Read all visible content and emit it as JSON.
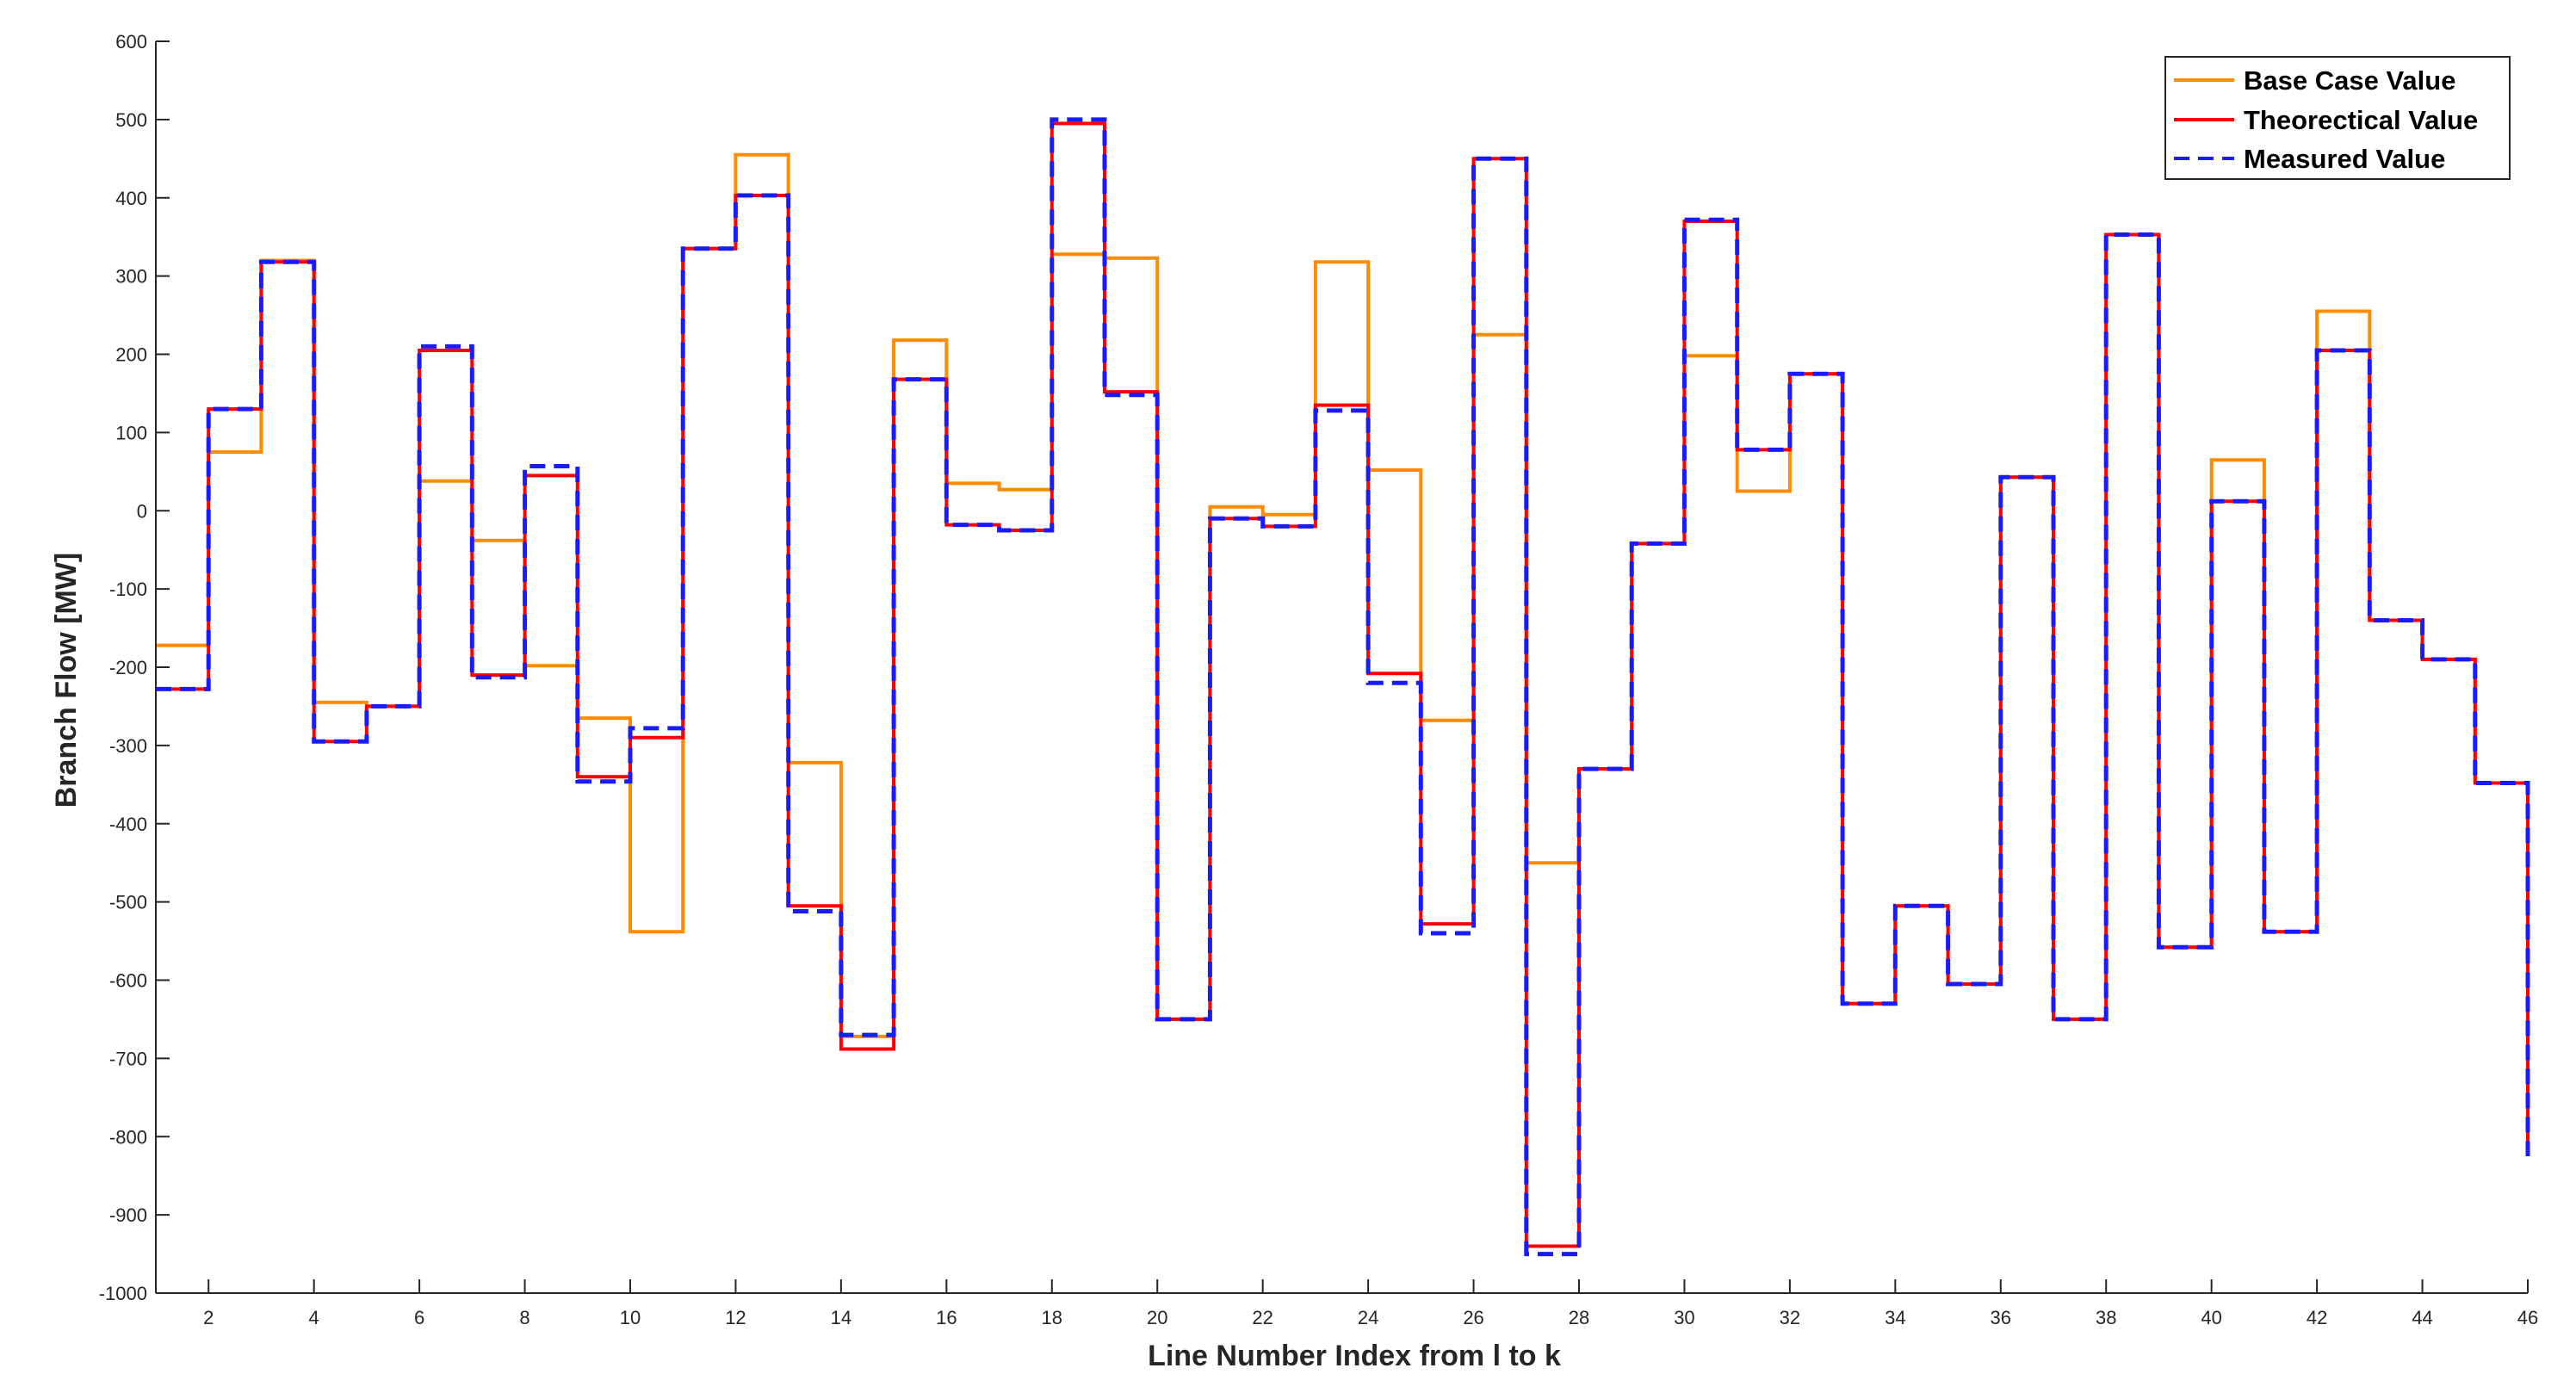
{
  "chart_data": {
    "type": "line",
    "style": "stairs",
    "title": "",
    "xlabel": "Line Number Index from l to k",
    "ylabel": "Branch Flow [MW]",
    "xlim": [
      1,
      46
    ],
    "ylim": [
      -1000,
      600
    ],
    "grid": false,
    "legend_position": "top-right",
    "x": [
      1,
      2,
      3,
      4,
      5,
      6,
      7,
      8,
      9,
      10,
      11,
      12,
      13,
      14,
      15,
      16,
      17,
      18,
      19,
      20,
      21,
      22,
      23,
      24,
      25,
      26,
      27,
      28,
      29,
      30,
      31,
      32,
      33,
      34,
      35,
      36,
      37,
      38,
      39,
      40,
      41,
      42,
      43,
      44,
      45,
      46
    ],
    "x_ticks": [
      2,
      4,
      6,
      8,
      10,
      12,
      14,
      16,
      18,
      20,
      22,
      24,
      26,
      28,
      30,
      32,
      34,
      36,
      38,
      40,
      42,
      44,
      46
    ],
    "y_ticks": [
      600,
      500,
      400,
      300,
      200,
      100,
      0,
      -100,
      -200,
      -300,
      -400,
      -500,
      -600,
      -700,
      -800,
      -900,
      -1000
    ],
    "series": [
      {
        "name": "Base Case Value",
        "color": "#ff8c00",
        "dash": "solid",
        "values": [
          -172,
          75,
          320,
          -245,
          -250,
          38,
          -38,
          -198,
          -265,
          -538,
          335,
          455,
          -322,
          -672,
          218,
          35,
          27,
          328,
          323,
          -650,
          5,
          -5,
          318,
          52,
          -268,
          225,
          -450,
          -330,
          -42,
          198,
          25,
          175,
          -630,
          -505,
          -605,
          43,
          -650,
          353,
          -558,
          65,
          -538,
          255,
          -140,
          -190,
          -348,
          -825
        ]
      },
      {
        "name": "Theorectical Value",
        "color": "#ff0000",
        "dash": "solid",
        "values": [
          -228,
          130,
          318,
          -295,
          -250,
          205,
          -210,
          45,
          -340,
          -290,
          335,
          403,
          -505,
          -688,
          168,
          -18,
          -25,
          495,
          152,
          -650,
          -10,
          -20,
          135,
          -208,
          -528,
          450,
          -940,
          -330,
          -42,
          370,
          78,
          175,
          -630,
          -505,
          -605,
          43,
          -650,
          353,
          -558,
          12,
          -538,
          205,
          -140,
          -190,
          -348,
          -825
        ]
      },
      {
        "name": "Measured Value",
        "color": "#1a1aff",
        "dash": "dashed",
        "values": [
          -228,
          130,
          318,
          -295,
          -250,
          210,
          -213,
          57,
          -346,
          -278,
          335,
          403,
          -512,
          -670,
          168,
          -18,
          -25,
          500,
          148,
          -650,
          -10,
          -20,
          128,
          -220,
          -540,
          450,
          -950,
          -330,
          -42,
          372,
          78,
          175,
          -630,
          -505,
          -605,
          43,
          -650,
          353,
          -558,
          12,
          -538,
          205,
          -140,
          -190,
          -348,
          -825
        ]
      }
    ]
  }
}
